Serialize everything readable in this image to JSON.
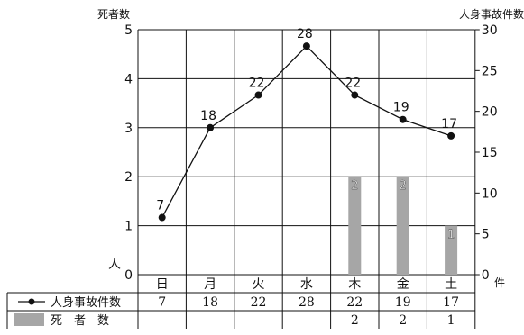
{
  "chart_data": {
    "type": "bar+line",
    "categories": [
      "日",
      "月",
      "火",
      "水",
      "木",
      "金",
      "土"
    ],
    "left_axis": {
      "title": "死者数",
      "unit": "人",
      "ticks": [
        "0",
        "1",
        "2",
        "3",
        "4",
        "5"
      ],
      "range": [
        0,
        5
      ]
    },
    "right_axis": {
      "title": "人身事故件数",
      "unit": "件",
      "ticks": [
        "0",
        "5",
        "10",
        "15",
        "20",
        "25",
        "30"
      ],
      "range": [
        0,
        30
      ]
    },
    "series": [
      {
        "name": "人身事故件数",
        "type": "line",
        "axis": "right",
        "color": "#111111",
        "values": [
          7,
          18,
          22,
          28,
          22,
          19,
          17
        ],
        "table_values": [
          "7",
          "18",
          "22",
          "28",
          "22",
          "19",
          "17"
        ]
      },
      {
        "name": "死　者　数",
        "type": "bar",
        "axis": "left",
        "color": "#a6a6a6",
        "values": [
          null,
          null,
          null,
          null,
          2,
          2,
          1
        ],
        "table_values": [
          "",
          "",
          "",
          "",
          "2",
          "2",
          "1"
        ]
      }
    ],
    "grid": true,
    "legend": "table-below"
  }
}
